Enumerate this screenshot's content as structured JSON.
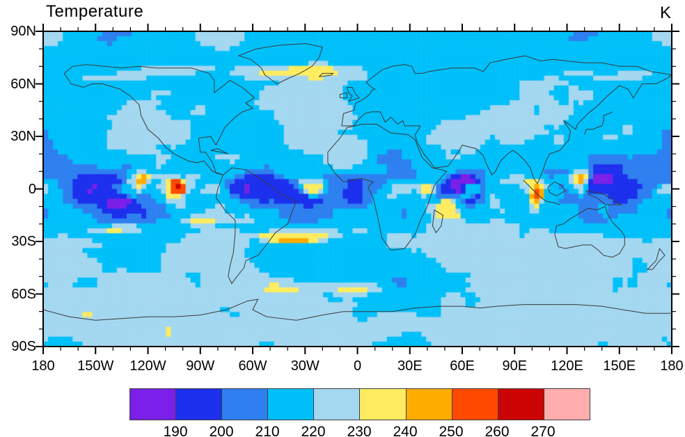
{
  "title": "Temperature",
  "units_label": "K",
  "colors": {
    "background": "#ffffff",
    "frame": "#000000",
    "tick": "#000000",
    "coastline": "#3a3a3a",
    "label": "#000000"
  },
  "chart_data": {
    "type": "heatmap",
    "subtype": "filled_contour_map_raster",
    "title": "Temperature",
    "units": "K",
    "projection": "cylindrical_equidistant",
    "lon_range": [
      -180,
      180
    ],
    "lat_range": [
      -90,
      90
    ],
    "grid": {
      "nx": 128,
      "ny": 64
    },
    "contour_levels": [
      190,
      200,
      210,
      220,
      230,
      240,
      250,
      260,
      270
    ],
    "palette": [
      "#7B20E8",
      "#1C30EE",
      "#2E80F0",
      "#00C0FA",
      "#A4D7F0",
      "#FFEC60",
      "#FFAB00",
      "#FF4A00",
      "#CC0404",
      "#FFADAD"
    ],
    "colorbar_labels": [
      "190",
      "200",
      "210",
      "220",
      "230",
      "240",
      "250",
      "260",
      "270"
    ],
    "x_axis": {
      "major_tick_deg": 30,
      "minor_tick_deg": 10,
      "tick_labels": [
        "180",
        "150W",
        "120W",
        "90W",
        "60W",
        "30W",
        "0",
        "30E",
        "60E",
        "90E",
        "120E",
        "150E",
        "180"
      ],
      "tick_lons": [
        -180,
        -150,
        -120,
        -90,
        -60,
        -30,
        0,
        30,
        60,
        90,
        120,
        150,
        180
      ]
    },
    "y_axis": {
      "major_tick_deg": 30,
      "minor_tick_deg": 10,
      "tick_labels": [
        "90N",
        "60N",
        "30N",
        "0",
        "30S",
        "60S",
        "90S"
      ],
      "tick_lats": [
        90,
        60,
        30,
        0,
        -30,
        -60,
        -90
      ]
    },
    "field_summary": {
      "description": "Brightness-temperature-like global field: large 190-210 K (dark/medium blue) convective regions along the tropics with isolated cells below 190 K (violet) and embedded 240-270 K (orange/red) patches; 210-230 K (cyan/pale blue) mid-latitudes; 230-250 K (yellow/orange) streaks in both subtropics, near 60N and 55-65S; pale 220-230 K polar caps with scattered yellow streaks.",
      "value_min_shown": 190,
      "value_max_shown": 270
    },
    "coastlines": [
      [
        [
          -168,
          66
        ],
        [
          -164,
          60
        ],
        [
          -157,
          58
        ],
        [
          -152,
          60
        ],
        [
          -146,
          60
        ],
        [
          -136,
          57
        ],
        [
          -130,
          53
        ],
        [
          -125,
          48
        ],
        [
          -124,
          42
        ],
        [
          -120,
          34
        ],
        [
          -114,
          29
        ],
        [
          -110,
          24
        ],
        [
          -105,
          20
        ],
        [
          -97,
          16
        ],
        [
          -92,
          15
        ],
        [
          -88,
          16
        ],
        [
          -83,
          10
        ],
        [
          -77,
          8
        ],
        [
          -81,
          9
        ],
        [
          -83,
          15
        ],
        [
          -87,
          21
        ],
        [
          -90,
          21
        ],
        [
          -91,
          29
        ],
        [
          -84,
          30
        ],
        [
          -81,
          25
        ],
        [
          -80,
          27
        ],
        [
          -76,
          35
        ],
        [
          -70,
          41
        ],
        [
          -66,
          44
        ],
        [
          -60,
          46
        ],
        [
          -64,
          49
        ],
        [
          -59,
          52
        ],
        [
          -66,
          58
        ],
        [
          -73,
          62
        ],
        [
          -78,
          58
        ],
        [
          -82,
          55
        ],
        [
          -82,
          62
        ],
        [
          -85,
          66
        ],
        [
          -95,
          69
        ],
        [
          -105,
          69
        ],
        [
          -115,
          69
        ],
        [
          -125,
          70
        ],
        [
          -135,
          69
        ],
        [
          -145,
          70
        ],
        [
          -155,
          71
        ],
        [
          -163,
          70
        ],
        [
          -168,
          66
        ]
      ],
      [
        [
          -46,
          60
        ],
        [
          -53,
          65
        ],
        [
          -55,
          69
        ],
        [
          -61,
          74
        ],
        [
          -68,
          76
        ],
        [
          -58,
          80
        ],
        [
          -45,
          82
        ],
        [
          -30,
          83
        ],
        [
          -20,
          81
        ],
        [
          -22,
          75
        ],
        [
          -26,
          70
        ],
        [
          -33,
          66
        ],
        [
          -40,
          63
        ],
        [
          -46,
          60
        ]
      ],
      [
        [
          -77,
          8
        ],
        [
          -72,
          12
        ],
        [
          -64,
          11
        ],
        [
          -56,
          6
        ],
        [
          -50,
          2
        ],
        [
          -44,
          -3
        ],
        [
          -35,
          -7
        ],
        [
          -37,
          -12
        ],
        [
          -40,
          -20
        ],
        [
          -47,
          -25
        ],
        [
          -53,
          -33
        ],
        [
          -57,
          -38
        ],
        [
          -64,
          -41
        ],
        [
          -65,
          -45
        ],
        [
          -69,
          -50
        ],
        [
          -72,
          -54
        ],
        [
          -74,
          -50
        ],
        [
          -73,
          -44
        ],
        [
          -71,
          -36
        ],
        [
          -70,
          -25
        ],
        [
          -70,
          -18
        ],
        [
          -76,
          -12
        ],
        [
          -81,
          -5
        ],
        [
          -80,
          0
        ],
        [
          -77,
          8
        ]
      ],
      [
        [
          -6,
          35
        ],
        [
          3,
          37
        ],
        [
          11,
          37
        ],
        [
          19,
          32
        ],
        [
          29,
          31
        ],
        [
          33,
          28
        ],
        [
          37,
          18
        ],
        [
          43,
          12
        ],
        [
          48,
          11
        ],
        [
          51,
          10
        ],
        [
          44,
          2
        ],
        [
          40,
          -10
        ],
        [
          36,
          -18
        ],
        [
          33,
          -26
        ],
        [
          27,
          -34
        ],
        [
          19,
          -35
        ],
        [
          14,
          -28
        ],
        [
          12,
          -18
        ],
        [
          9,
          -5
        ],
        [
          6,
          1
        ],
        [
          9,
          4
        ],
        [
          2,
          6
        ],
        [
          -8,
          4
        ],
        [
          -13,
          9
        ],
        [
          -17,
          15
        ],
        [
          -17,
          21
        ],
        [
          -10,
          29
        ],
        [
          -6,
          35
        ]
      ],
      [
        [
          -9,
          36
        ],
        [
          -8,
          43
        ],
        [
          -2,
          45
        ],
        [
          -1,
          49
        ],
        [
          3,
          51
        ],
        [
          7,
          54
        ],
        [
          8,
          56
        ],
        [
          10,
          57
        ],
        [
          8,
          58
        ],
        [
          5,
          61
        ],
        [
          9,
          64
        ],
        [
          14,
          68
        ],
        [
          20,
          70
        ],
        [
          27,
          71
        ],
        [
          31,
          70
        ],
        [
          33,
          66
        ],
        [
          37,
          66
        ],
        [
          41,
          67
        ],
        [
          47,
          68
        ],
        [
          54,
          69
        ],
        [
          61,
          69
        ],
        [
          67,
          69
        ],
        [
          72,
          67
        ],
        [
          76,
          72
        ],
        [
          85,
          74
        ],
        [
          96,
          76
        ],
        [
          105,
          73
        ],
        [
          112,
          74
        ],
        [
          120,
          73
        ],
        [
          130,
          72
        ],
        [
          140,
          72
        ],
        [
          150,
          70
        ],
        [
          160,
          70
        ],
        [
          168,
          67
        ],
        [
          175,
          66
        ],
        [
          180,
          65
        ],
        [
          177,
          63
        ],
        [
          171,
          60
        ],
        [
          163,
          60
        ],
        [
          158,
          52
        ],
        [
          155,
          57
        ],
        [
          150,
          59
        ],
        [
          143,
          53
        ],
        [
          137,
          47
        ],
        [
          132,
          43
        ],
        [
          129,
          40
        ],
        [
          126,
          37
        ],
        [
          125,
          34
        ],
        [
          121,
          37
        ],
        [
          118,
          39
        ],
        [
          122,
          33
        ],
        [
          121,
          28
        ],
        [
          116,
          22
        ],
        [
          110,
          20
        ],
        [
          108,
          16
        ],
        [
          106,
          10
        ],
        [
          103,
          3
        ],
        [
          101,
          6
        ],
        [
          99,
          12
        ],
        [
          96,
          16
        ],
        [
          92,
          20
        ],
        [
          89,
          22
        ],
        [
          86,
          20
        ],
        [
          82,
          16
        ],
        [
          79,
          10
        ],
        [
          77,
          8
        ],
        [
          74,
          14
        ],
        [
          72,
          19
        ],
        [
          68,
          23
        ],
        [
          64,
          24
        ],
        [
          60,
          25
        ],
        [
          57,
          20
        ],
        [
          52,
          13
        ],
        [
          44,
          12
        ],
        [
          42,
          15
        ],
        [
          38,
          20
        ],
        [
          34,
          27
        ],
        [
          33,
          31
        ],
        [
          35,
          34
        ],
        [
          36,
          36
        ],
        [
          31,
          36
        ],
        [
          27,
          36
        ],
        [
          26,
          39
        ],
        [
          23,
          37
        ],
        [
          21,
          39
        ],
        [
          19,
          41
        ],
        [
          16,
          38
        ],
        [
          15,
          40
        ],
        [
          13,
          44
        ],
        [
          8,
          44
        ],
        [
          4,
          43
        ],
        [
          0,
          39
        ],
        [
          -2,
          36
        ],
        [
          -6,
          36
        ],
        [
          -9,
          36
        ]
      ],
      [
        [
          114,
          -21
        ],
        [
          113,
          -26
        ],
        [
          115,
          -33
        ],
        [
          119,
          -34
        ],
        [
          124,
          -33
        ],
        [
          129,
          -32
        ],
        [
          134,
          -32
        ],
        [
          138,
          -35
        ],
        [
          141,
          -38
        ],
        [
          146,
          -39
        ],
        [
          150,
          -37
        ],
        [
          153,
          -32
        ],
        [
          153,
          -27
        ],
        [
          151,
          -24
        ],
        [
          146,
          -19
        ],
        [
          143,
          -14
        ],
        [
          142,
          -10
        ],
        [
          137,
          -12
        ],
        [
          132,
          -11
        ],
        [
          127,
          -14
        ],
        [
          122,
          -17
        ],
        [
          118,
          -20
        ],
        [
          114,
          -21
        ]
      ],
      [
        [
          -180,
          -69
        ],
        [
          -165,
          -73
        ],
        [
          -150,
          -75
        ],
        [
          -135,
          -74
        ],
        [
          -120,
          -73
        ],
        [
          -105,
          -73
        ],
        [
          -90,
          -72
        ],
        [
          -75,
          -69
        ],
        [
          -63,
          -64
        ],
        [
          -57,
          -63
        ],
        [
          -60,
          -69
        ],
        [
          -52,
          -73
        ],
        [
          -35,
          -75
        ],
        [
          -20,
          -72
        ],
        [
          -8,
          -70
        ],
        [
          8,
          -70
        ],
        [
          20,
          -70
        ],
        [
          33,
          -68
        ],
        [
          47,
          -67
        ],
        [
          60,
          -67
        ],
        [
          70,
          -68
        ],
        [
          80,
          -67
        ],
        [
          95,
          -66
        ],
        [
          110,
          -66
        ],
        [
          125,
          -66
        ],
        [
          140,
          -67
        ],
        [
          152,
          -69
        ],
        [
          165,
          -71
        ],
        [
          180,
          -71
        ]
      ],
      [
        [
          130,
          31
        ],
        [
          131,
          34
        ],
        [
          135,
          34
        ],
        [
          137,
          35
        ],
        [
          140,
          36
        ],
        [
          141,
          39
        ],
        [
          141,
          42
        ],
        [
          144,
          43
        ],
        [
          146,
          44
        ]
      ],
      [
        [
          -5,
          50
        ],
        [
          -3,
          53
        ],
        [
          -5,
          55
        ],
        [
          -6,
          58
        ],
        [
          -3,
          58
        ],
        [
          -1,
          54
        ],
        [
          1,
          52
        ],
        [
          -5,
          50
        ]
      ],
      [
        [
          -10,
          52
        ],
        [
          -6,
          52
        ],
        [
          -6,
          55
        ],
        [
          -10,
          54
        ],
        [
          -10,
          52
        ]
      ],
      [
        [
          -22,
          64
        ],
        [
          -15,
          65
        ],
        [
          -14,
          66
        ],
        [
          -20,
          66
        ],
        [
          -22,
          64
        ]
      ],
      [
        [
          -84,
          22
        ],
        [
          -78,
          21
        ],
        [
          -74,
          20
        ],
        [
          -80,
          23
        ],
        [
          -84,
          22
        ]
      ],
      [
        [
          44,
          -12
        ],
        [
          49,
          -15
        ],
        [
          48,
          -21
        ],
        [
          45,
          -25
        ],
        [
          43,
          -21
        ],
        [
          44,
          -12
        ]
      ],
      [
        [
          173,
          -34
        ],
        [
          176,
          -38
        ],
        [
          173,
          -41
        ],
        [
          169,
          -46
        ],
        [
          166,
          -46
        ],
        [
          171,
          -41
        ],
        [
          173,
          -34
        ]
      ],
      [
        [
          109,
          1
        ],
        [
          113,
          4
        ],
        [
          117,
          2
        ],
        [
          119,
          -1
        ],
        [
          114,
          -4
        ],
        [
          110,
          -2
        ],
        [
          109,
          1
        ]
      ],
      [
        [
          131,
          -1
        ],
        [
          136,
          -2
        ],
        [
          141,
          -3
        ],
        [
          146,
          -6
        ],
        [
          151,
          -9
        ],
        [
          147,
          -9
        ],
        [
          142,
          -9
        ],
        [
          137,
          -5
        ],
        [
          132,
          -3
        ],
        [
          131,
          -1
        ]
      ],
      [
        [
          95,
          5
        ],
        [
          100,
          0
        ],
        [
          104,
          -4
        ],
        [
          108,
          -7
        ],
        [
          113,
          -8
        ],
        [
          116,
          -9
        ]
      ]
    ]
  }
}
